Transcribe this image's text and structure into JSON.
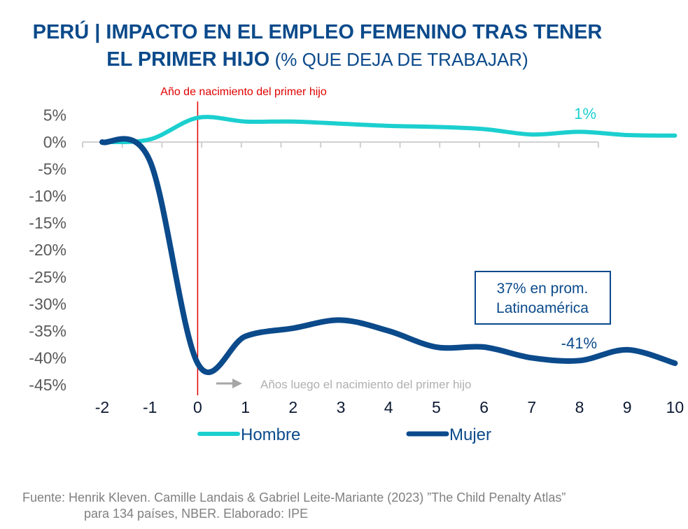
{
  "title": {
    "line1": "PERÚ | IMPACTO EN EL EMPLEO FEMENINO TRAS TENER",
    "line2_bold": "EL PRIMER HIJO",
    "line2_rest": " (% QUE DEJA DE TRABAJAR)"
  },
  "chart_data": {
    "type": "line",
    "x": [
      -2,
      -1,
      0,
      1,
      2,
      3,
      4,
      5,
      6,
      7,
      8,
      9,
      10
    ],
    "x_tick_labels": [
      "-2",
      "-1",
      "0",
      "1",
      "2",
      "3",
      "4",
      "5",
      "6",
      "7",
      "8",
      "9",
      "10"
    ],
    "y_tick_labels": [
      "5%",
      "0%",
      "-5%",
      "-10%",
      "-15%",
      "-20%",
      "-25%",
      "-30%",
      "-35%",
      "-40%",
      "-45%"
    ],
    "y_ticks": [
      5,
      0,
      -5,
      -10,
      -15,
      -20,
      -25,
      -30,
      -35,
      -40,
      -45
    ],
    "ylim": [
      -45,
      5
    ],
    "grid": false,
    "legend_position": "bottom",
    "series": [
      {
        "name": "Hombre",
        "color": "#1ccfcf",
        "values": [
          0,
          0.5,
          4.5,
          3.8,
          3.8,
          3.4,
          3.0,
          2.8,
          2.4,
          1.4,
          1.9,
          1.3,
          1.2
        ],
        "end_label": "1%"
      },
      {
        "name": "Mujer",
        "color": "#0b4a8b",
        "values": [
          0,
          -3.5,
          -41,
          -36,
          -34.5,
          -33,
          -35,
          -38,
          -38,
          -40,
          -40.5,
          -38.5,
          -41
        ],
        "end_label": "-41%"
      }
    ],
    "annotations": {
      "vline_x": 0,
      "vline_color": "#e00000",
      "vline_label": "Año de nacimiento del primer hijo",
      "x_note": "Años luego el nacimiento del primer hijo",
      "box_line1": "37% en prom.",
      "box_line2": "Latinoamérica"
    }
  },
  "source": {
    "line1": "Fuente: Henrik Kleven. Camille Landais & Gabriel Leite-Mariante (2023) ”The Child Penalty Atlas”",
    "line2": "para 134 países, NBER. Elaborado: IPE"
  }
}
